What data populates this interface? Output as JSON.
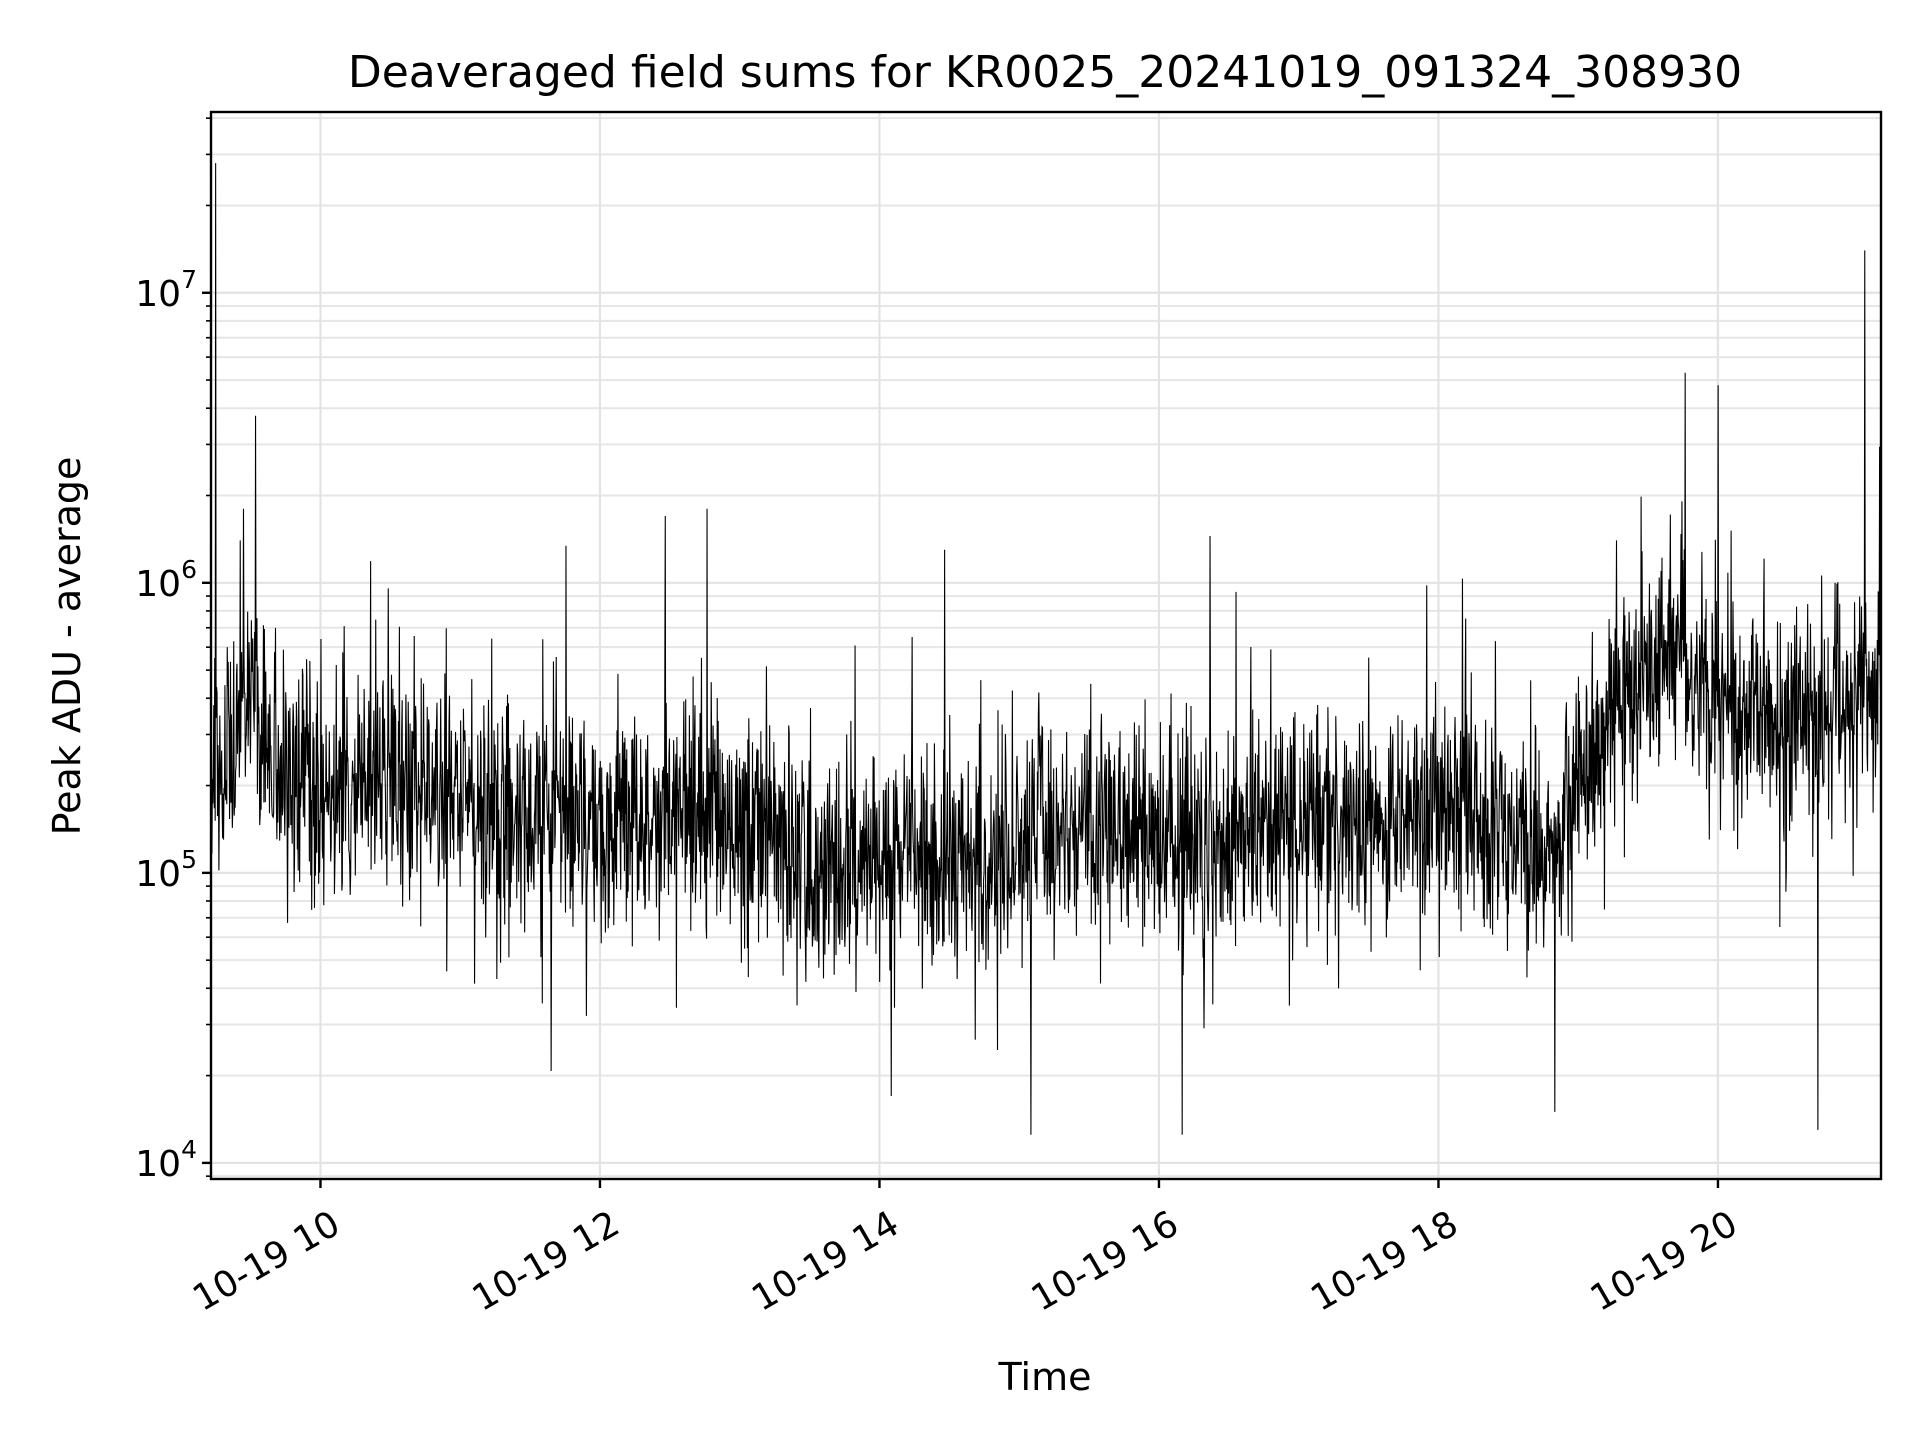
{
  "chart_data": {
    "type": "line",
    "title": "Deaveraged field sums for KR0025_20241019_091324_308930",
    "xlabel": "Time",
    "ylabel": "Peak ADU - average",
    "y_scale": "log",
    "xlim": [
      "2024-10-19 09:13",
      "2024-10-19 21:10"
    ],
    "ylim": [
      8800,
      42000000
    ],
    "x_ticks": [
      {
        "value": "2024-10-19 10:00",
        "label": "10-19 10"
      },
      {
        "value": "2024-10-19 12:00",
        "label": "10-19 12"
      },
      {
        "value": "2024-10-19 14:00",
        "label": "10-19 14"
      },
      {
        "value": "2024-10-19 16:00",
        "label": "10-19 16"
      },
      {
        "value": "2024-10-19 18:00",
        "label": "10-19 18"
      },
      {
        "value": "2024-10-19 20:00",
        "label": "10-19 20"
      }
    ],
    "y_ticks": [
      {
        "value": 10000,
        "base": "10",
        "exp": "4"
      },
      {
        "value": 100000,
        "base": "10",
        "exp": "5"
      },
      {
        "value": 1000000,
        "base": "10",
        "exp": "6"
      },
      {
        "value": 10000000,
        "base": "10",
        "exp": "7"
      }
    ],
    "grid": true,
    "series_color": "#000000",
    "series": [
      {
        "name": "",
        "x": [
          "2024-10-19 09:13",
          "2024-10-19 09:20",
          "2024-10-19 09:30",
          "2024-10-19 09:40",
          "2024-10-19 10:00",
          "2024-10-19 10:30",
          "2024-10-19 11:00",
          "2024-10-19 11:30",
          "2024-10-19 12:00",
          "2024-10-19 12:30",
          "2024-10-19 13:00",
          "2024-10-19 13:30",
          "2024-10-19 14:00",
          "2024-10-19 14:30",
          "2024-10-19 15:00",
          "2024-10-19 15:30",
          "2024-10-19 16:00",
          "2024-10-19 16:30",
          "2024-10-19 17:00",
          "2024-10-19 17:30",
          "2024-10-19 18:00",
          "2024-10-19 18:30",
          "2024-10-19 18:50",
          "2024-10-19 19:15",
          "2024-10-19 19:40",
          "2024-10-19 20:00",
          "2024-10-19 20:30",
          "2024-10-19 21:00",
          "2024-10-19 21:10"
        ],
        "y": [
          300000,
          250000,
          500000,
          230000,
          220000,
          220000,
          180000,
          150000,
          140000,
          160000,
          150000,
          110000,
          110000,
          110000,
          110000,
          150000,
          130000,
          140000,
          150000,
          150000,
          170000,
          130000,
          120000,
          350000,
          600000,
          400000,
          300000,
          400000,
          450000
        ],
        "spikes": [
          {
            "x": "2024-10-19 09:15",
            "y": 28000000
          },
          {
            "x": "2024-10-19 09:27",
            "y": 1800000
          },
          {
            "x": "2024-10-19 12:28",
            "y": 1700000
          },
          {
            "x": "2024-10-19 12:46",
            "y": 1800000
          },
          {
            "x": "2024-10-19 14:28",
            "y": 1300000
          },
          {
            "x": "2024-10-19 16:22",
            "y": 1450000
          },
          {
            "x": "2024-10-19 19:46",
            "y": 5300000
          },
          {
            "x": "2024-10-19 20:00",
            "y": 4800000
          },
          {
            "x": "2024-10-19 21:03",
            "y": 14000000
          },
          {
            "x": "2024-10-19 15:05",
            "y": 12500
          },
          {
            "x": "2024-10-19 16:10",
            "y": 12500
          },
          {
            "x": "2024-10-19 18:50",
            "y": 15000
          },
          {
            "x": "2024-10-19 20:43",
            "y": 13000
          },
          {
            "x": "2024-10-19 14:05",
            "y": 17000
          }
        ]
      }
    ]
  }
}
